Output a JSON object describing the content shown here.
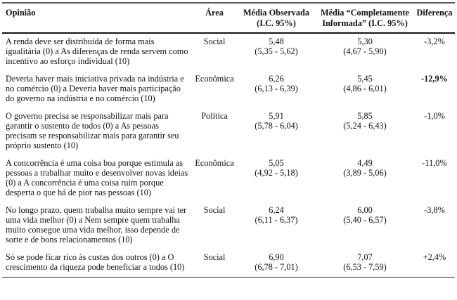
{
  "table": {
    "headers": {
      "opinion": "Opinião",
      "area": "Área",
      "observed": "Média Observada (I.C. 95%)",
      "informed": "Média “Completamente Informada” (I.C. 95%)",
      "difference": "Diferença"
    },
    "rows": [
      {
        "opinion": "A renda deve ser distribuída de forma mais igualitária (0) a As diferenças de renda servem como incentivo ao esforço individual (10)",
        "area": "Social",
        "observed_mean": "5,48",
        "observed_ci": "(5,35 - 5,62)",
        "informed_mean": "5,30",
        "informed_ci": "(4,67 - 5,90)",
        "difference": "-3,2%",
        "difference_emphasis": false
      },
      {
        "opinion": "Deveria haver mais iniciativa privada na indústria e no comércio (0) a Deveria haver mais participação do governo na indústria e no comércio (10)",
        "area": "Econômica",
        "observed_mean": "6,26",
        "observed_ci": "(6,13 - 6,39)",
        "informed_mean": "5,45",
        "informed_ci": "(4,86 - 6,01)",
        "difference": "-12,9%",
        "difference_emphasis": true
      },
      {
        "opinion": "O governo precisa se responsabilizar mais para garantir o sustento de todos (0) a As pessoas precisam se responsabilizar mais para garantir seu próprio sustento (10)",
        "area": "Política",
        "observed_mean": "5,91",
        "observed_ci": "(5,78 - 6,04)",
        "informed_mean": "5,85",
        "informed_ci": "(5,24 - 6,43)",
        "difference": "-1,0%",
        "difference_emphasis": false
      },
      {
        "opinion": "A concorrência é uma coisa boa porque estimula as pessoas a trabalhar muito e desenvolver novas ideias (0) a A concorrência é uma coisa ruim porque desperta o que há de pior nas pessoas (10)",
        "area": "Econômica",
        "observed_mean": "5,05",
        "observed_ci": "(4,92 - 5,18)",
        "informed_mean": "4,49",
        "informed_ci": "(3,89 - 5,06)",
        "difference": "-11,0%",
        "difference_emphasis": false
      },
      {
        "opinion": "No longo prazo, quem trabalha muito sempre vai ter uma vida melhor (0) a Nem sempre quem trabalha muito consegue uma vida melhor, isso depende de sorte e de bons relacionamentos (10)",
        "area": "Social",
        "observed_mean": "6,24",
        "observed_ci": "(6,11 - 6,37)",
        "informed_mean": "6,00",
        "informed_ci": "(5,40 - 6,57)",
        "difference": "-3,8%",
        "difference_emphasis": false
      },
      {
        "opinion": "Só se pode ficar rico às custas dos outros (0) a O crescimento da riqueza pode beneficiar a todos (10)",
        "area": "Social",
        "observed_mean": "6,90",
        "observed_ci": "(6,78 - 7,01)",
        "informed_mean": "7,07",
        "informed_ci": "(6,53 - 7,59)",
        "difference": "+2,4%",
        "difference_emphasis": false
      }
    ]
  },
  "colors": {
    "background": "#ffffff",
    "text": "#111111",
    "rule_top": "#595959",
    "rule_header": "#141414",
    "rule_bottom": "#2a2a2a"
  }
}
